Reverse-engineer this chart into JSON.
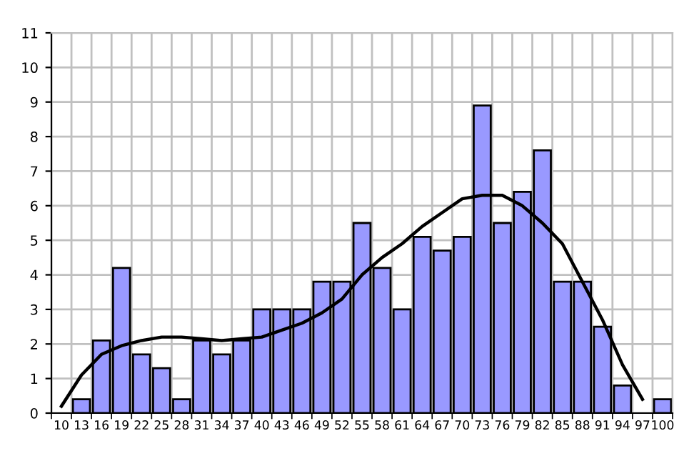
{
  "chart_data": {
    "type": "bar",
    "categories": [
      "10",
      "13",
      "16",
      "19",
      "22",
      "25",
      "28",
      "31",
      "34",
      "37",
      "40",
      "43",
      "46",
      "49",
      "52",
      "55",
      "58",
      "61",
      "64",
      "67",
      "70",
      "73",
      "76",
      "79",
      "82",
      "85",
      "88",
      "91",
      "94",
      "97",
      "100"
    ],
    "series": [
      {
        "color": "#9999ff",
        "values": [
          null,
          0.4,
          2.1,
          4.2,
          1.7,
          1.3,
          0.4,
          2.1,
          1.7,
          2.1,
          3.0,
          3.0,
          3.0,
          3.8,
          3.8,
          5.5,
          4.2,
          3.0,
          5.1,
          4.7,
          5.1,
          8.9,
          5.5,
          6.4,
          7.6,
          3.8,
          3.8,
          2.5,
          0.8,
          null,
          0.4
        ]
      },
      {
        "type": "line",
        "color": "#000000",
        "values": [
          0.2,
          1.1,
          1.7,
          1.95,
          2.1,
          2.2,
          2.2,
          2.15,
          2.1,
          2.15,
          2.2,
          2.4,
          2.6,
          2.9,
          3.3,
          4.0,
          4.5,
          4.9,
          5.4,
          5.8,
          6.2,
          6.3,
          6.3,
          6.0,
          5.5,
          4.9,
          3.8,
          2.7,
          1.4,
          0.4,
          null
        ]
      }
    ],
    "ylim": [
      0,
      11
    ],
    "yticks": [
      0,
      1,
      2,
      3,
      4,
      5,
      6,
      7,
      8,
      9,
      10,
      11
    ],
    "grid": true
  }
}
